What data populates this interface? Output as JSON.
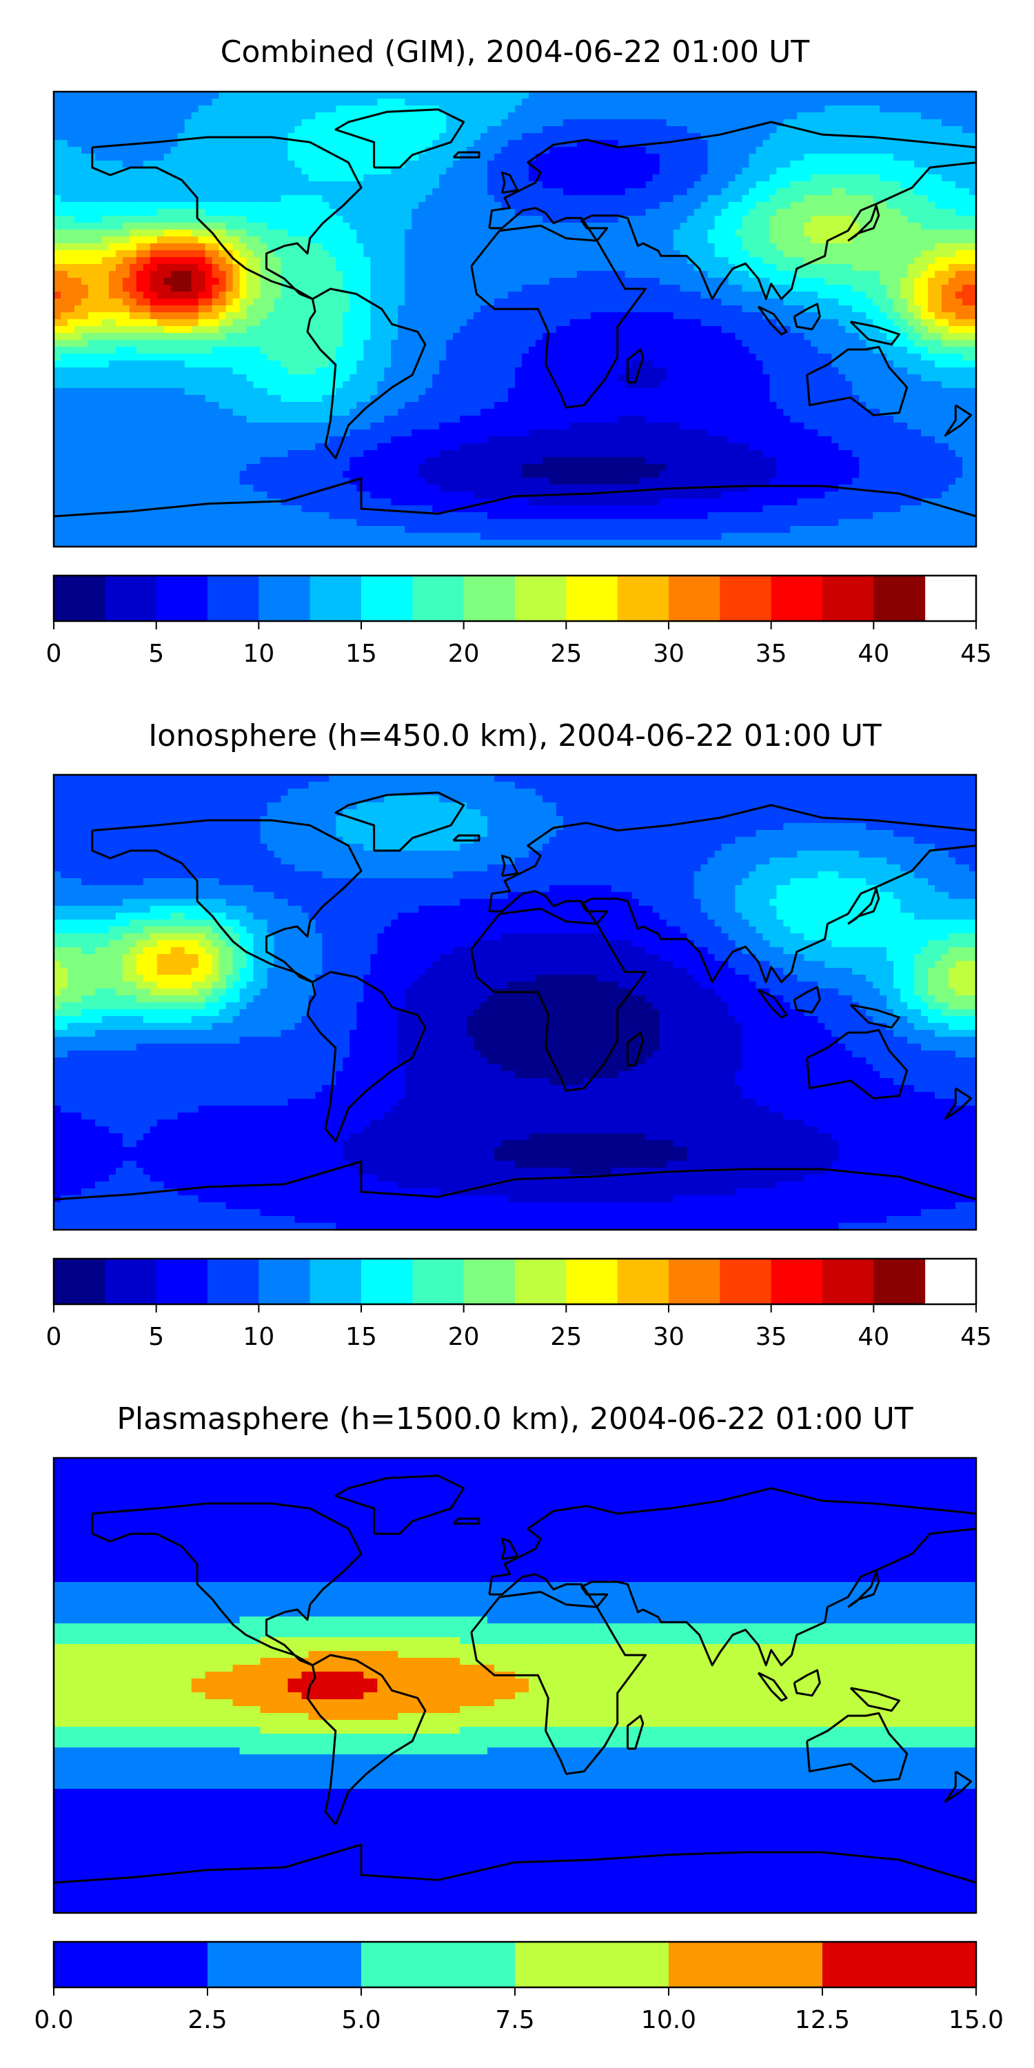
{
  "chart_data": [
    {
      "type": "heatmap",
      "title": "Combined (GIM), 2004-06-22 01:00 UT",
      "colorbar": {
        "min": 0,
        "max": 45,
        "step": 2.5,
        "ticks": [
          "0",
          "5",
          "10",
          "15",
          "20",
          "25",
          "30",
          "35",
          "40",
          "45"
        ],
        "colors": [
          "#00008b",
          "#0000cd",
          "#0000ff",
          "#0040ff",
          "#0080ff",
          "#00bfff",
          "#00ffff",
          "#3fffbf",
          "#7fff7f",
          "#bfff3f",
          "#ffff00",
          "#ffbf00",
          "#ff8000",
          "#ff4000",
          "#ff0000",
          "#cd0000",
          "#8b0000"
        ]
      },
      "features": [
        {
          "lon": -130,
          "lat": 15,
          "value": 42,
          "sx": 25,
          "sy": 15
        },
        {
          "lon": 175,
          "lat": 10,
          "value": 35,
          "sx": 20,
          "sy": 15
        },
        {
          "lon": 120,
          "lat": 35,
          "value": 24,
          "sx": 35,
          "sy": 20
        },
        {
          "lon": -80,
          "lat": 0,
          "value": 20,
          "sx": 20,
          "sy": 30
        },
        {
          "lon": 10,
          "lat": 0,
          "value": 12,
          "sx": 30,
          "sy": 25
        },
        {
          "lon": 50,
          "lat": -20,
          "value": 5,
          "sx": 50,
          "sy": 25
        },
        {
          "lon": 30,
          "lat": -60,
          "value": 2,
          "sx": 80,
          "sy": 15
        },
        {
          "lon": -40,
          "lat": 70,
          "value": 18,
          "sx": 40,
          "sy": 15
        },
        {
          "lon": 30,
          "lat": 60,
          "value": 6,
          "sx": 40,
          "sy": 15
        }
      ],
      "base_value": 12
    },
    {
      "type": "heatmap",
      "title": "Ionosphere  (h=450.0 km), 2004-06-22 01:00 UT",
      "colorbar": {
        "min": 0,
        "max": 45,
        "step": 2.5,
        "ticks": [
          "0",
          "5",
          "10",
          "15",
          "20",
          "25",
          "30",
          "35",
          "40",
          "45"
        ],
        "colors": [
          "#00008b",
          "#0000cd",
          "#0000ff",
          "#0040ff",
          "#0080ff",
          "#00bfff",
          "#00ffff",
          "#3fffbf",
          "#7fff7f",
          "#bfff3f",
          "#ffff00",
          "#ffbf00",
          "#ff8000",
          "#ff4000",
          "#ff0000",
          "#cd0000",
          "#8b0000"
        ]
      },
      "features": [
        {
          "lon": -130,
          "lat": 15,
          "value": 30,
          "sx": 25,
          "sy": 15
        },
        {
          "lon": 175,
          "lat": 10,
          "value": 25,
          "sx": 20,
          "sy": 15
        },
        {
          "lon": 120,
          "lat": 35,
          "value": 18,
          "sx": 35,
          "sy": 20
        },
        {
          "lon": -80,
          "lat": 0,
          "value": 12,
          "sx": 20,
          "sy": 25
        },
        {
          "lon": 20,
          "lat": -10,
          "value": 1,
          "sx": 55,
          "sy": 30
        },
        {
          "lon": 30,
          "lat": -60,
          "value": 2,
          "sx": 80,
          "sy": 15
        },
        {
          "lon": -40,
          "lat": 70,
          "value": 14,
          "sx": 40,
          "sy": 15
        }
      ],
      "base_value": 8
    },
    {
      "type": "heatmap",
      "title": "Plasmasphere (h=1500.0 km), 2004-06-22 01:00 UT",
      "colorbar": {
        "min": 0,
        "max": 15,
        "step": 2.5,
        "ticks": [
          "0.0",
          "2.5",
          "5.0",
          "7.5",
          "10.0",
          "12.5",
          "15.0"
        ],
        "colors": [
          "#0000ff",
          "#0080ff",
          "#3fffbf",
          "#bfff3f",
          "#ff9900",
          "#dd0000"
        ]
      },
      "features": [
        {
          "lon": -60,
          "lat": 0,
          "value": 12.5,
          "sx": 35,
          "sy": 10
        },
        {
          "lon": -75,
          "lat": 0,
          "value": 13.5,
          "sx": 10,
          "sy": 5
        },
        {
          "lon": 110,
          "lat": 0,
          "value": 10,
          "sx": 20,
          "sy": 6
        }
      ],
      "base_value": 1.5,
      "band": {
        "peak": 9.5,
        "center_lat": 0,
        "width_lat": 28
      }
    }
  ]
}
